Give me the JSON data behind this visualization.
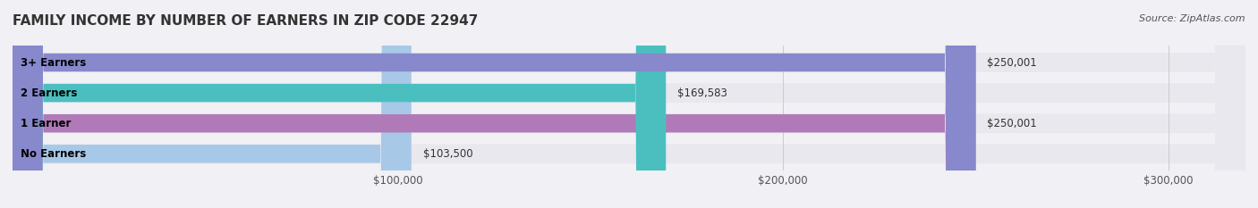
{
  "title": "FAMILY INCOME BY NUMBER OF EARNERS IN ZIP CODE 22947",
  "source": "Source: ZipAtlas.com",
  "categories": [
    "No Earners",
    "1 Earner",
    "2 Earners",
    "3+ Earners"
  ],
  "values": [
    103500,
    250001,
    169583,
    250001
  ],
  "bar_colors": [
    "#a8c8e8",
    "#b07ab8",
    "#4bbfbf",
    "#8888cc"
  ],
  "bar_labels": [
    "$103,500",
    "$250,001",
    "$169,583",
    "$250,001"
  ],
  "xlim": [
    0,
    320000
  ],
  "xticks": [
    100000,
    200000,
    300000
  ],
  "xtick_labels": [
    "$100,000",
    "$200,000",
    "$300,000"
  ],
  "background_color": "#f0f0f5",
  "bar_bg_color": "#e8e8ee",
  "title_fontsize": 11,
  "label_fontsize": 8.5,
  "axis_fontsize": 8.5,
  "source_fontsize": 8
}
